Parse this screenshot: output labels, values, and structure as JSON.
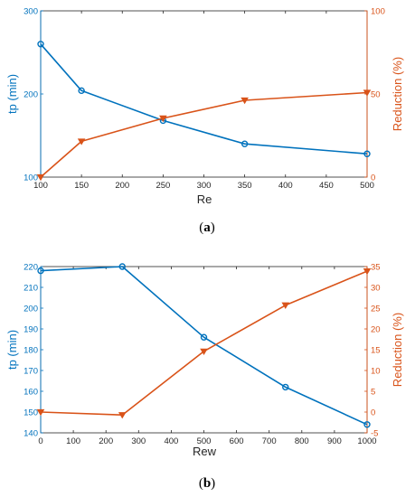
{
  "colors": {
    "left": "#0072BD",
    "right": "#D95319",
    "axis": "#262626"
  },
  "chart_data": [
    {
      "panel": "a",
      "type": "line",
      "caption_prefix": "(",
      "caption_letter": "a",
      "caption_suffix": ")",
      "xlabel": "Re",
      "ylabel_left": "tp (min)",
      "ylabel_right": "Reduction (%)",
      "xlim": [
        100,
        500
      ],
      "ylim_left": [
        100,
        300
      ],
      "ylim_right": [
        0,
        100
      ],
      "x_ticks": [
        "100",
        "150",
        "200",
        "250",
        "300",
        "350",
        "400",
        "450",
        "500"
      ],
      "y_ticks_left": [
        "100",
        "200",
        "300"
      ],
      "y_ticks_right": [
        "0",
        "50",
        "100"
      ],
      "series": [
        {
          "axis": "left",
          "marker": "circle",
          "x": [
            100,
            150,
            250,
            350,
            500
          ],
          "values": [
            260,
            204,
            168,
            140,
            128
          ]
        },
        {
          "axis": "right",
          "marker": "triangle-down",
          "x": [
            100,
            150,
            250,
            350,
            500
          ],
          "values": [
            0,
            21.5,
            35.4,
            46.2,
            50.8
          ]
        }
      ]
    },
    {
      "panel": "b",
      "type": "line",
      "caption_prefix": "(",
      "caption_letter": "b",
      "caption_suffix": ")",
      "xlabel": "Rew",
      "ylabel_left": "tp (min)",
      "ylabel_right": "Reduction (%)",
      "xlim": [
        0,
        1000
      ],
      "ylim_left": [
        140,
        220
      ],
      "ylim_right": [
        -5,
        35
      ],
      "x_ticks": [
        "0",
        "100",
        "200",
        "300",
        "400",
        "500",
        "600",
        "700",
        "800",
        "900",
        "1000"
      ],
      "y_ticks_left": [
        "140",
        "150",
        "160",
        "170",
        "180",
        "190",
        "200",
        "210",
        "220"
      ],
      "y_ticks_right": [
        "-5",
        "0",
        "5",
        "10",
        "15",
        "20",
        "25",
        "30",
        "35"
      ],
      "series": [
        {
          "axis": "left",
          "marker": "circle",
          "x": [
            0,
            250,
            500,
            750,
            1000
          ],
          "values": [
            218,
            220,
            186,
            162,
            144
          ]
        },
        {
          "axis": "right",
          "marker": "triangle-down",
          "x": [
            0,
            250,
            500,
            750,
            1000
          ],
          "values": [
            0,
            -0.7,
            14.6,
            25.7,
            33.9
          ]
        }
      ]
    }
  ]
}
